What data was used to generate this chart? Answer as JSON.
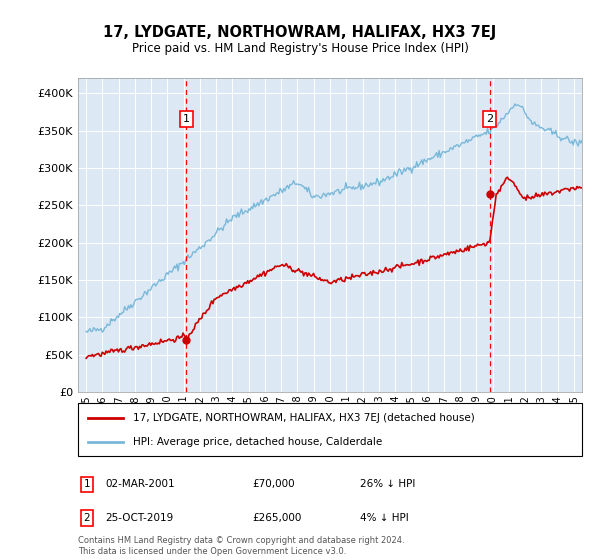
{
  "title": "17, LYDGATE, NORTHOWRAM, HALIFAX, HX3 7EJ",
  "subtitle": "Price paid vs. HM Land Registry's House Price Index (HPI)",
  "legend_line1": "17, LYDGATE, NORTHOWRAM, HALIFAX, HX3 7EJ (detached house)",
  "legend_line2": "HPI: Average price, detached house, Calderdale",
  "footer": "Contains HM Land Registry data © Crown copyright and database right 2024.\nThis data is licensed under the Open Government Licence v3.0.",
  "annotation1": {
    "label": "1",
    "date": "02-MAR-2001",
    "price": "£70,000",
    "pct": "26% ↓ HPI"
  },
  "annotation2": {
    "label": "2",
    "date": "25-OCT-2019",
    "price": "£265,000",
    "pct": "4% ↓ HPI"
  },
  "sale1_x": 2001.17,
  "sale1_y": 70000,
  "sale2_x": 2019.82,
  "sale2_y": 265000,
  "hpi_color": "#7ab8d9",
  "price_color": "#cc0000",
  "plot_bg": "#dce9f5",
  "ylim": [
    0,
    420000
  ],
  "yticks": [
    0,
    50000,
    100000,
    150000,
    200000,
    250000,
    300000,
    350000,
    400000
  ],
  "xlim": [
    1994.5,
    2025.5
  ]
}
